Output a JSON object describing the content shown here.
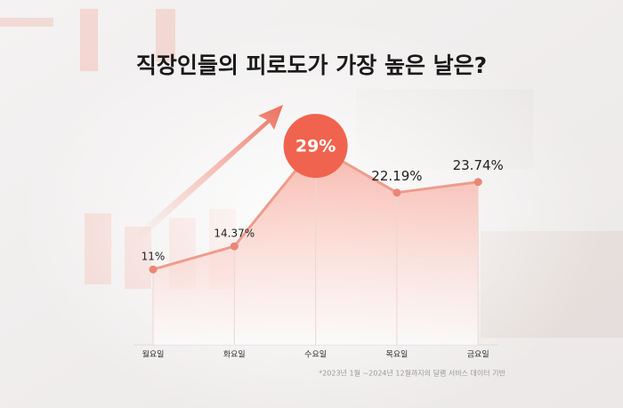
{
  "chart_data": {
    "type": "line",
    "title": "직장인들의 피로도가 가장 높은 날은?",
    "categories": [
      "월요일",
      "화요일",
      "수요일",
      "목요일",
      "금요일"
    ],
    "values": [
      11,
      14.37,
      29,
      22.19,
      23.74
    ],
    "value_labels": [
      "11%",
      "14.37%",
      "29%",
      "22.19%",
      "23.74%"
    ],
    "color": "#ef9c8c",
    "footnote": "*2023년 1월 ~2024년 12월까지의 달램 서비스 데이터 기반"
  }
}
